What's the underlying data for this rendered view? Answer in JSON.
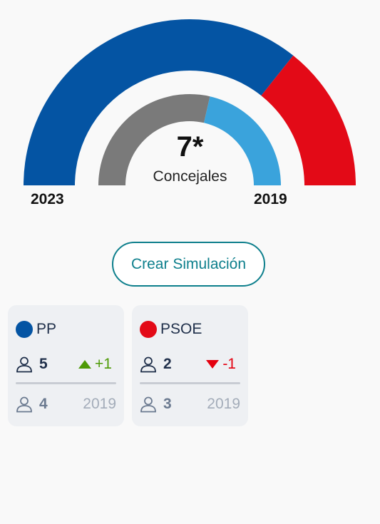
{
  "chart_data": {
    "type": "pie",
    "subtype": "semicircle-donut",
    "center_value": "7*",
    "center_label": "Concejales",
    "outer_label": "2023",
    "inner_label": "2019",
    "rings": [
      {
        "name": "2023",
        "position": "outer",
        "series": [
          {
            "party": "PP",
            "value": 5,
            "color": "#0454a3"
          },
          {
            "party": "PSOE",
            "value": 2,
            "color": "#e30a17"
          }
        ]
      },
      {
        "name": "2019",
        "position": "inner",
        "series": [
          {
            "party": "",
            "value": 4,
            "color": "#7a7a7a"
          },
          {
            "party": "",
            "value": 3,
            "color": "#3aa3dc"
          }
        ]
      }
    ]
  },
  "button": {
    "label": "Crear Simulación"
  },
  "cards": [
    {
      "party": "PP",
      "color": "#0454a3",
      "seats": "5",
      "change": "+1",
      "direction": "up",
      "prev_seats": "4",
      "prev_year": "2019"
    },
    {
      "party": "PSOE",
      "color": "#e30a17",
      "seats": "2",
      "change": "-1",
      "direction": "down",
      "prev_seats": "3",
      "prev_year": "2019"
    }
  ]
}
